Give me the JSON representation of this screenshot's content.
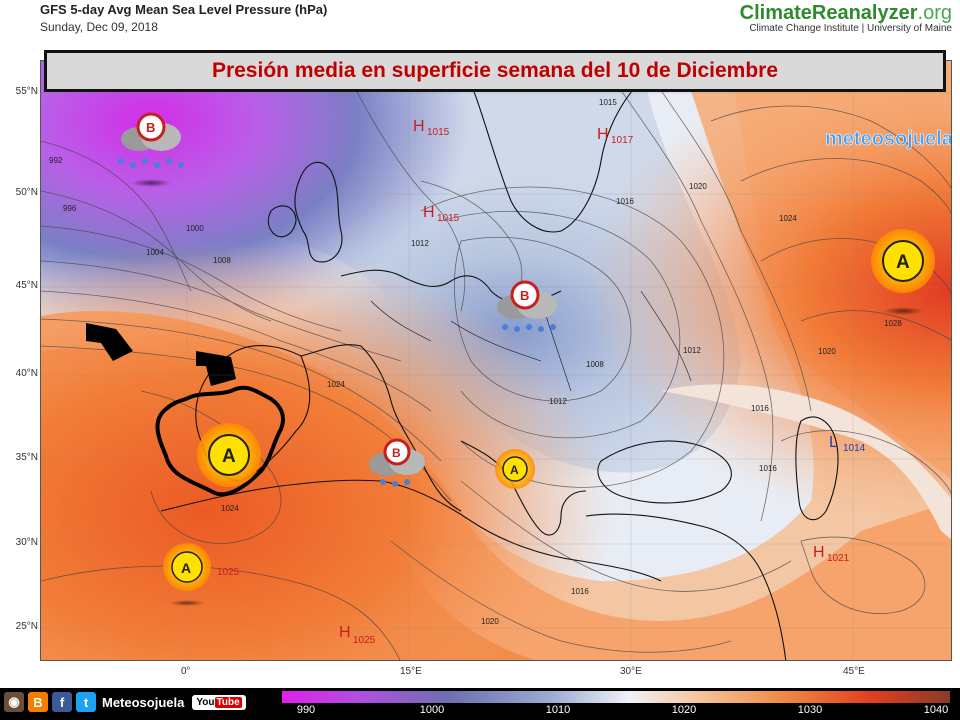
{
  "header": {
    "title": "GFS 5-day Avg Mean Sea Level Pressure (hPa)",
    "date": "Sunday, Dec 09, 2018",
    "brand_main": "ClimateReanalyzer",
    "brand_tld": ".org",
    "brand_sub": "Climate Change Institute | University of Maine"
  },
  "banner": {
    "text": "Presión media en superficie semana del 10 de Diciembre"
  },
  "watermark": {
    "logo_text": "meteosojuela"
  },
  "axes": {
    "lat_labels": [
      "55°N",
      "50°N",
      "45°N",
      "40°N",
      "35°N",
      "30°N",
      "25°N"
    ],
    "lon_labels": [
      "0°",
      "15°E",
      "30°E",
      "45°E"
    ]
  },
  "systems": {
    "high_labels": [
      {
        "letter": "H",
        "value": "1015"
      },
      {
        "letter": "H",
        "value": "1017"
      },
      {
        "letter": "H",
        "value": "1015"
      },
      {
        "letter": "H",
        "value": "1021"
      },
      {
        "letter": "H",
        "value": "1025"
      }
    ],
    "low_labels": [
      {
        "letter": "L",
        "value": "1014"
      }
    ],
    "icon_value": "1025"
  },
  "isobar_labels": [
    "992",
    "996",
    "1000",
    "1004",
    "1008",
    "1012",
    "1015",
    "1016",
    "1020",
    "1024",
    "1028",
    "1008",
    "1012",
    "1016",
    "1020",
    "1024",
    "1016",
    "1020",
    "1024",
    "1012",
    "1016"
  ],
  "colorbar": {
    "labels": [
      "990",
      "1000",
      "1010",
      "1020",
      "1030",
      "1040"
    ]
  },
  "footer": {
    "social_name": "Meteosojuela",
    "youtube_a": "You",
    "youtube_b": "Tube"
  },
  "colors": {
    "low": "#c040e0",
    "mid": "#e8eef6",
    "high": "#ee6a2a",
    "banner_text": "#c00000"
  }
}
